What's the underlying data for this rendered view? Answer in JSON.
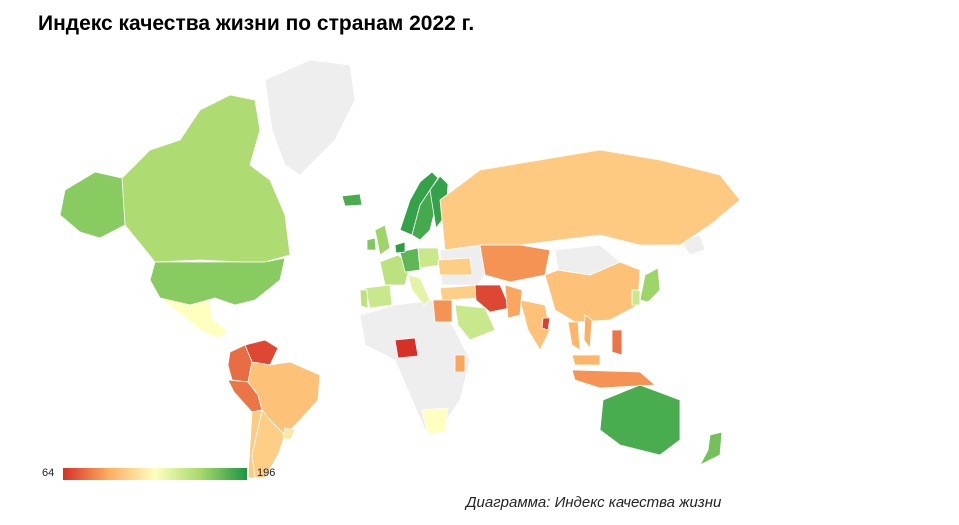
{
  "title": "Индекс качества жизни по странам 2022 г.",
  "caption": "Диаграмма: Индекс качества жизни",
  "legend": {
    "min_label": "64",
    "max_label": "196",
    "min": 64,
    "max": 196,
    "gradient": [
      "#d73027",
      "#fdae61",
      "#ffffbf",
      "#a6d96a",
      "#1a9641"
    ]
  },
  "colors": {
    "no_data": "#eeeeee",
    "border": "#ffffff"
  },
  "countries": [
    {
      "name": "Canada",
      "value": 160
    },
    {
      "name": "USA",
      "value": 170
    },
    {
      "name": "Mexico",
      "value": 130
    },
    {
      "name": "Alaska",
      "value": 170
    },
    {
      "name": "Venezuela",
      "value": 70
    },
    {
      "name": "Colombia",
      "value": 80
    },
    {
      "name": "Peru",
      "value": 82
    },
    {
      "name": "Brazil",
      "value": 105
    },
    {
      "name": "Argentina",
      "value": 110
    },
    {
      "name": "Chile",
      "value": 108
    },
    {
      "name": "Uruguay",
      "value": 120
    },
    {
      "name": "Greenland",
      "value": null
    },
    {
      "name": "Iceland",
      "value": 185
    },
    {
      "name": "Norway",
      "value": 190
    },
    {
      "name": "Sweden",
      "value": 186
    },
    {
      "name": "Finland",
      "value": 190
    },
    {
      "name": "UK",
      "value": 165
    },
    {
      "name": "Ireland",
      "value": 172
    },
    {
      "name": "France",
      "value": 155
    },
    {
      "name": "Spain",
      "value": 150
    },
    {
      "name": "Portugal",
      "value": 155
    },
    {
      "name": "Germany",
      "value": 180
    },
    {
      "name": "Netherlands",
      "value": 192
    },
    {
      "name": "Italy",
      "value": 140
    },
    {
      "name": "Poland",
      "value": 150
    },
    {
      "name": "Ukraine",
      "value": 110
    },
    {
      "name": "Turkey",
      "value": 110
    },
    {
      "name": "Russia",
      "value": 108
    },
    {
      "name": "Kazakhstan",
      "value": 90
    },
    {
      "name": "China",
      "value": 105
    },
    {
      "name": "Mongolia",
      "value": null
    },
    {
      "name": "Iran",
      "value": 70
    },
    {
      "name": "Saudi Arabia",
      "value": 150
    },
    {
      "name": "Egypt",
      "value": 90
    },
    {
      "name": "India",
      "value": 105
    },
    {
      "name": "Pakistan",
      "value": 95
    },
    {
      "name": "Bangladesh",
      "value": 68
    },
    {
      "name": "Japan",
      "value": 165
    },
    {
      "name": "Korea",
      "value": 150
    },
    {
      "name": "Philippines",
      "value": 82
    },
    {
      "name": "Indonesia",
      "value": 90
    },
    {
      "name": "Malaysia",
      "value": 100
    },
    {
      "name": "Thailand",
      "value": 100
    },
    {
      "name": "Vietnam",
      "value": 98
    },
    {
      "name": "Nigeria",
      "value": 64
    },
    {
      "name": "Kenya",
      "value": 95
    },
    {
      "name": "South Africa",
      "value": 130
    },
    {
      "name": "Australia",
      "value": 185
    },
    {
      "name": "New Zealand",
      "value": 175
    }
  ]
}
